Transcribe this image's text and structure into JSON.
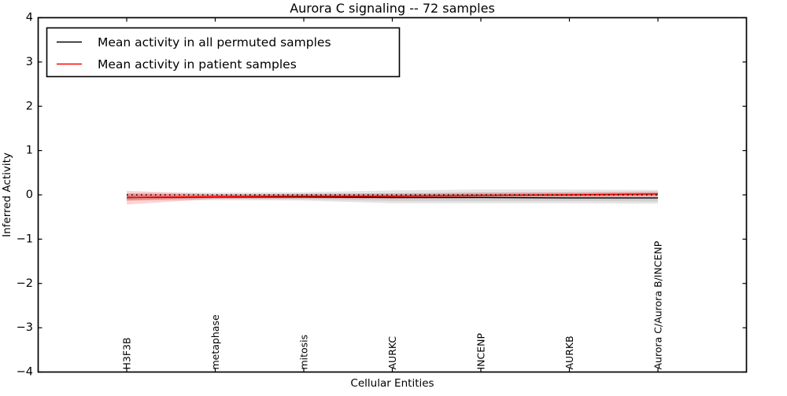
{
  "figure": {
    "background_color": "#ffffff",
    "frame_color": "#000000"
  },
  "chart_data": {
    "type": "line",
    "title": "Aurora C signaling -- 72 samples",
    "xlabel": "Cellular Entities",
    "ylabel": "Inferred Activity",
    "ylim": [
      -4,
      4
    ],
    "xlim_categories": [
      -1,
      7
    ],
    "ytick_values": [
      4,
      3,
      2,
      1,
      0,
      -1,
      -2,
      -3,
      -4
    ],
    "ytick_labels": [
      "4",
      "3",
      "2",
      "1",
      "0",
      "−1",
      "−2",
      "−3",
      "−4"
    ],
    "categories": [
      "H3F3B",
      "metaphase",
      "mitosis",
      "AURKC",
      "INCENP",
      "AURKB",
      "Aurora C/Aurora B/INCENP"
    ],
    "grid": false,
    "legend_position": "upper left",
    "series": [
      {
        "name": "Mean activity in all permuted samples",
        "color": "#000000",
        "line_style": "solid",
        "values": [
          -0.06,
          -0.05,
          -0.05,
          -0.06,
          -0.06,
          -0.07,
          -0.07
        ],
        "band_hi": [
          0.04,
          0.05,
          0.06,
          0.1,
          0.12,
          0.12,
          0.11
        ],
        "band_lo": [
          -0.13,
          -0.12,
          -0.13,
          -0.19,
          -0.19,
          -0.19,
          -0.2
        ],
        "band_inner_hi": [
          0.0,
          0.01,
          0.02,
          0.04,
          0.05,
          0.05,
          0.04
        ],
        "band_inner_lo": [
          -0.1,
          -0.09,
          -0.1,
          -0.14,
          -0.14,
          -0.14,
          -0.15
        ]
      },
      {
        "name": "Mean activity in patient samples",
        "color": "#ff0000",
        "line_style": "solid",
        "values": [
          -0.06,
          -0.04,
          -0.03,
          -0.03,
          -0.01,
          0.0,
          0.02
        ],
        "band_hi": [
          0.09,
          0.02,
          0.03,
          0.03,
          0.05,
          0.06,
          0.08
        ],
        "band_lo": [
          -0.22,
          -0.09,
          -0.08,
          -0.09,
          -0.07,
          -0.06,
          -0.04
        ],
        "band_inner_hi": [
          0.03,
          0.0,
          0.01,
          0.01,
          0.02,
          0.03,
          0.05
        ],
        "band_inner_lo": [
          -0.13,
          -0.06,
          -0.05,
          -0.06,
          -0.04,
          -0.03,
          -0.01
        ]
      }
    ],
    "reference_line": {
      "y": 0,
      "style": "dotted",
      "color": "#000000"
    }
  }
}
